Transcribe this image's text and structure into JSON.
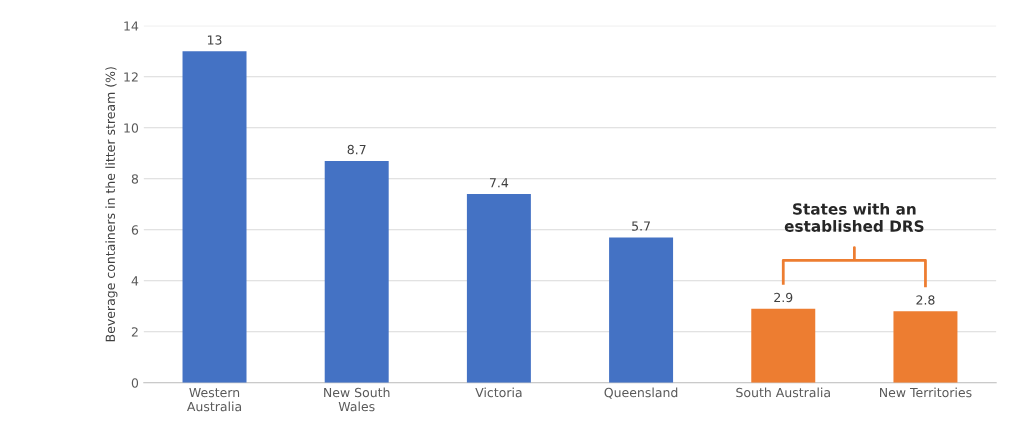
{
  "chart_data": {
    "type": "bar",
    "ylabel": "Beverage containers in the litter stream (%)",
    "categories": [
      "Western\nAustralia",
      "New South\nWales",
      "Victoria",
      "Queensland",
      "South Australia",
      "New Territories"
    ],
    "values": [
      13,
      8.7,
      7.4,
      5.7,
      2.9,
      2.8
    ],
    "colors": [
      "#4472c4",
      "#4472c4",
      "#4472c4",
      "#4472c4",
      "#ed7d31",
      "#ed7d31"
    ],
    "ylim": [
      0,
      14
    ],
    "yticks": [
      0,
      2,
      4,
      6,
      8,
      10,
      12,
      14
    ],
    "grid": "y",
    "data_labels": true,
    "annotations": [
      "States with an\nestablished DRS"
    ]
  }
}
